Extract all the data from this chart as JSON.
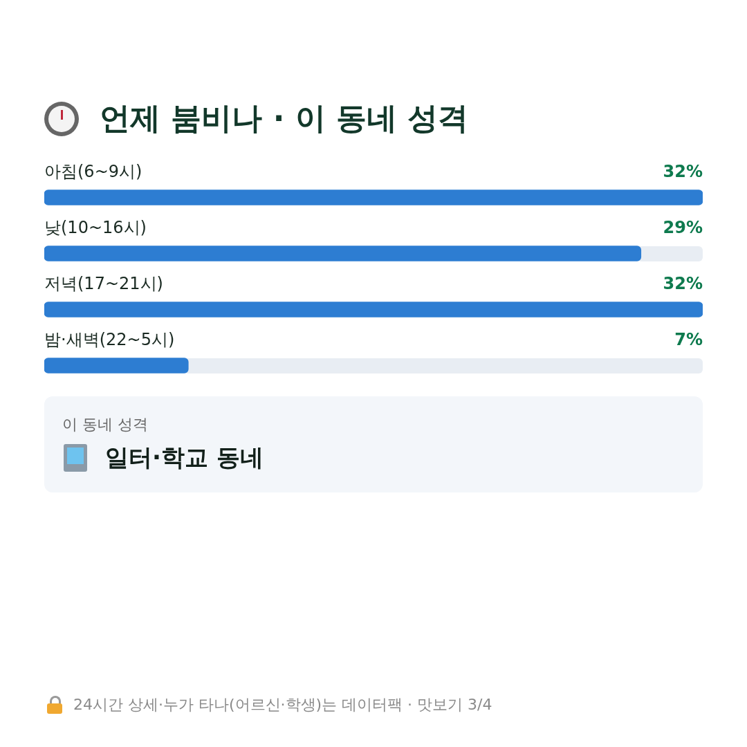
{
  "chart_data": {
    "type": "bar",
    "orientation": "horizontal",
    "title": "언제 붐비나 · 이 동네 성격",
    "categories": [
      "아침(6~9시)",
      "낮(10~16시)",
      "저녁(17~21시)",
      "밤·새벽(22~5시)"
    ],
    "values": [
      32,
      29,
      32,
      7
    ],
    "value_labels": [
      "32%",
      "29%",
      "32%",
      "7%"
    ],
    "color": "#2d7dd2",
    "legend": false,
    "annotations": [
      "이 동네 성격",
      "일터·학교 동네",
      "24시간 상세·누가 타나(어르신·학생)는 데이터팩 · 맛보기 3/4"
    ]
  }
}
